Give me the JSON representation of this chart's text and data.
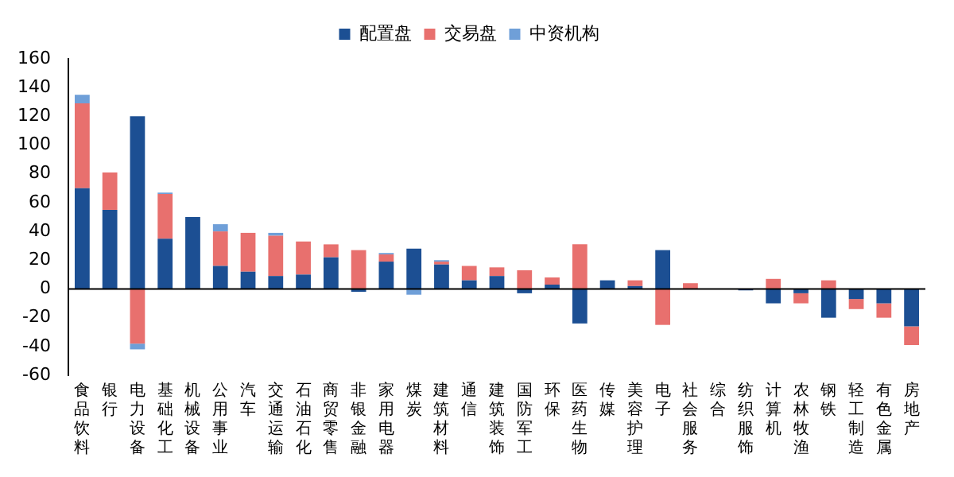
{
  "chart_data": {
    "type": "bar",
    "stacked": true,
    "legend": "top",
    "grid": false,
    "categories": [
      "食品饮料",
      "银行",
      "电力设备",
      "基础化工",
      "机械设备",
      "公用事业",
      "汽车",
      "交通运输",
      "石油石化",
      "商贸零售",
      "非银金融",
      "家用电器",
      "煤炭",
      "建筑材料",
      "通信",
      "建筑装饰",
      "国防军工",
      "环保",
      "医药生物",
      "传媒",
      "美容护理",
      "电子",
      "社会服务",
      "综合",
      "纺织服饰",
      "计算机",
      "农林牧渔",
      "钢铁",
      "轻工制造",
      "有色金属",
      "房地产"
    ],
    "series": [
      {
        "name": "配置盘",
        "color": "#1c4f93",
        "values": [
          70,
          55,
          120,
          35,
          50,
          16,
          12,
          9,
          10,
          22,
          -2,
          19,
          28,
          17,
          6,
          9,
          -3,
          3,
          -24,
          6,
          2,
          27,
          0,
          0,
          -1,
          -10,
          -3,
          -20,
          -7,
          -10,
          -26
        ]
      },
      {
        "name": "交易盘",
        "color": "#e8706e",
        "values": [
          59,
          26,
          -38,
          31,
          0,
          24,
          27,
          28,
          23,
          9,
          27,
          5,
          0,
          2,
          10,
          6,
          13,
          5,
          31,
          0,
          4,
          -25,
          4,
          0,
          0,
          7,
          -7,
          6,
          -7,
          -10,
          -13
        ]
      },
      {
        "name": "中资机构",
        "color": "#6f9fd8",
        "values": [
          6,
          0,
          -4,
          1,
          0,
          5,
          0,
          2,
          0,
          0,
          0,
          1,
          -4,
          1,
          0,
          0,
          0,
          0,
          0,
          0,
          0,
          0,
          0,
          0,
          0,
          0,
          0,
          0,
          0,
          0,
          0
        ]
      }
    ],
    "ref_lines": [
      {
        "axis": "y",
        "value": 0,
        "color": "#000000"
      }
    ],
    "ylim": [
      -60,
      160
    ],
    "yticks": [
      -60,
      -40,
      -20,
      0,
      20,
      40,
      60,
      80,
      100,
      120,
      140,
      160
    ]
  }
}
